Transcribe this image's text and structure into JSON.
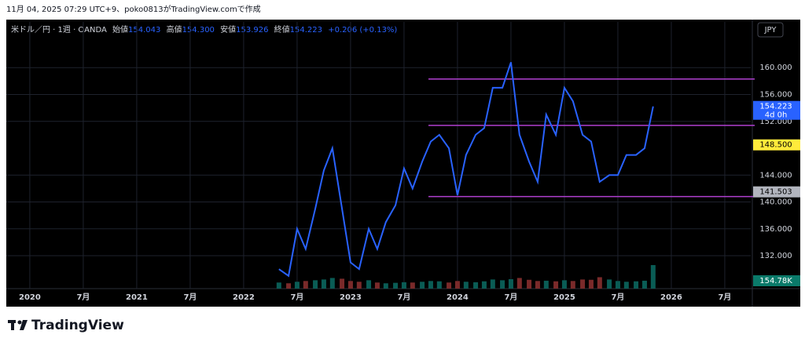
{
  "header": "11月 04, 2025 07:29 UTC+9、poko0813がTradingView.comで作成",
  "brand": "TradingView",
  "currency_button": "JPY",
  "legend": {
    "symbol": "米ドル／円 · 1週 · OANDA",
    "open_label": "始値",
    "open": "154.043",
    "high_label": "高値",
    "high": "154.300",
    "low_label": "安値",
    "low": "153.926",
    "close_label": "終値",
    "close": "154.223",
    "change": "+0.206 (+0.13%)"
  },
  "chart_data": {
    "type": "line",
    "x": [
      2022.33,
      2022.42,
      2022.5,
      2022.58,
      2022.67,
      2022.75,
      2022.83,
      2022.92,
      2023.0,
      2023.08,
      2023.17,
      2023.25,
      2023.33,
      2023.42,
      2023.5,
      2023.58,
      2023.67,
      2023.75,
      2023.83,
      2023.92,
      2024.0,
      2024.08,
      2024.17,
      2024.25,
      2024.33,
      2024.42,
      2024.5,
      2024.58,
      2024.67,
      2024.75,
      2024.83,
      2024.92,
      2025.0,
      2025.08,
      2025.17,
      2025.25,
      2025.33,
      2025.42,
      2025.5,
      2025.58,
      2025.67,
      2025.75,
      2025.83
    ],
    "series": [
      {
        "color": "#2962ff",
        "values": [
          130,
          129,
          136,
          133,
          139,
          144.7,
          148,
          139,
          131,
          130,
          136,
          133,
          137,
          139.5,
          145,
          142,
          146,
          149,
          150,
          148,
          141,
          147,
          150,
          151,
          157,
          157,
          160.8,
          150,
          146,
          143,
          153,
          150,
          157,
          155,
          150,
          149,
          143,
          144,
          144,
          147,
          147,
          148,
          154.223
        ]
      }
    ],
    "volume": [
      40,
      35,
      45,
      50,
      55,
      60,
      70,
      65,
      50,
      45,
      55,
      40,
      35,
      38,
      42,
      40,
      45,
      50,
      48,
      40,
      50,
      45,
      42,
      48,
      60,
      55,
      62,
      70,
      58,
      50,
      52,
      48,
      55,
      50,
      60,
      58,
      75,
      60,
      50,
      45,
      48,
      52,
      154.78
    ],
    "volume_label": "154.78K",
    "xlim": [
      2019.78,
      2026.743
    ],
    "xticks": [
      {
        "value": 2020,
        "label": "2020"
      },
      {
        "value": 2020.5,
        "label": "7月"
      },
      {
        "value": 2021,
        "label": "2021"
      },
      {
        "value": 2021.5,
        "label": "7月"
      },
      {
        "value": 2022,
        "label": "2022"
      },
      {
        "value": 2022.5,
        "label": "7月"
      },
      {
        "value": 2023,
        "label": "2023"
      },
      {
        "value": 2023.5,
        "label": "7月"
      },
      {
        "value": 2024,
        "label": "2024"
      },
      {
        "value": 2024.5,
        "label": "7月"
      },
      {
        "value": 2025,
        "label": "2025"
      },
      {
        "value": 2025.5,
        "label": "7月"
      },
      {
        "value": 2026,
        "label": "2026"
      },
      {
        "value": 2026.5,
        "label": "7月"
      }
    ],
    "ylim": [
      127.1,
      166.8
    ],
    "yticks": [
      {
        "value": 132,
        "label": "132.000"
      },
      {
        "value": 136,
        "label": "136.000"
      },
      {
        "value": 140,
        "label": "140.000"
      },
      {
        "value": 144,
        "label": "144.000"
      },
      {
        "value": 152,
        "label": "152.000"
      },
      {
        "value": 156,
        "label": "156.000"
      },
      {
        "value": 160,
        "label": "160.000"
      }
    ],
    "levels": [
      158.3,
      151.4,
      140.8
    ],
    "level_color": "#b03fd0",
    "price_tags": [
      {
        "value": 154.223,
        "sub": "4d 0h",
        "color": "#2962ff"
      },
      {
        "value": 148.5,
        "label": "148.500",
        "color": "#ffeb3b"
      },
      {
        "value": 141.503,
        "label": "141.503",
        "color": "#b2b5be"
      }
    ],
    "grid": true
  }
}
